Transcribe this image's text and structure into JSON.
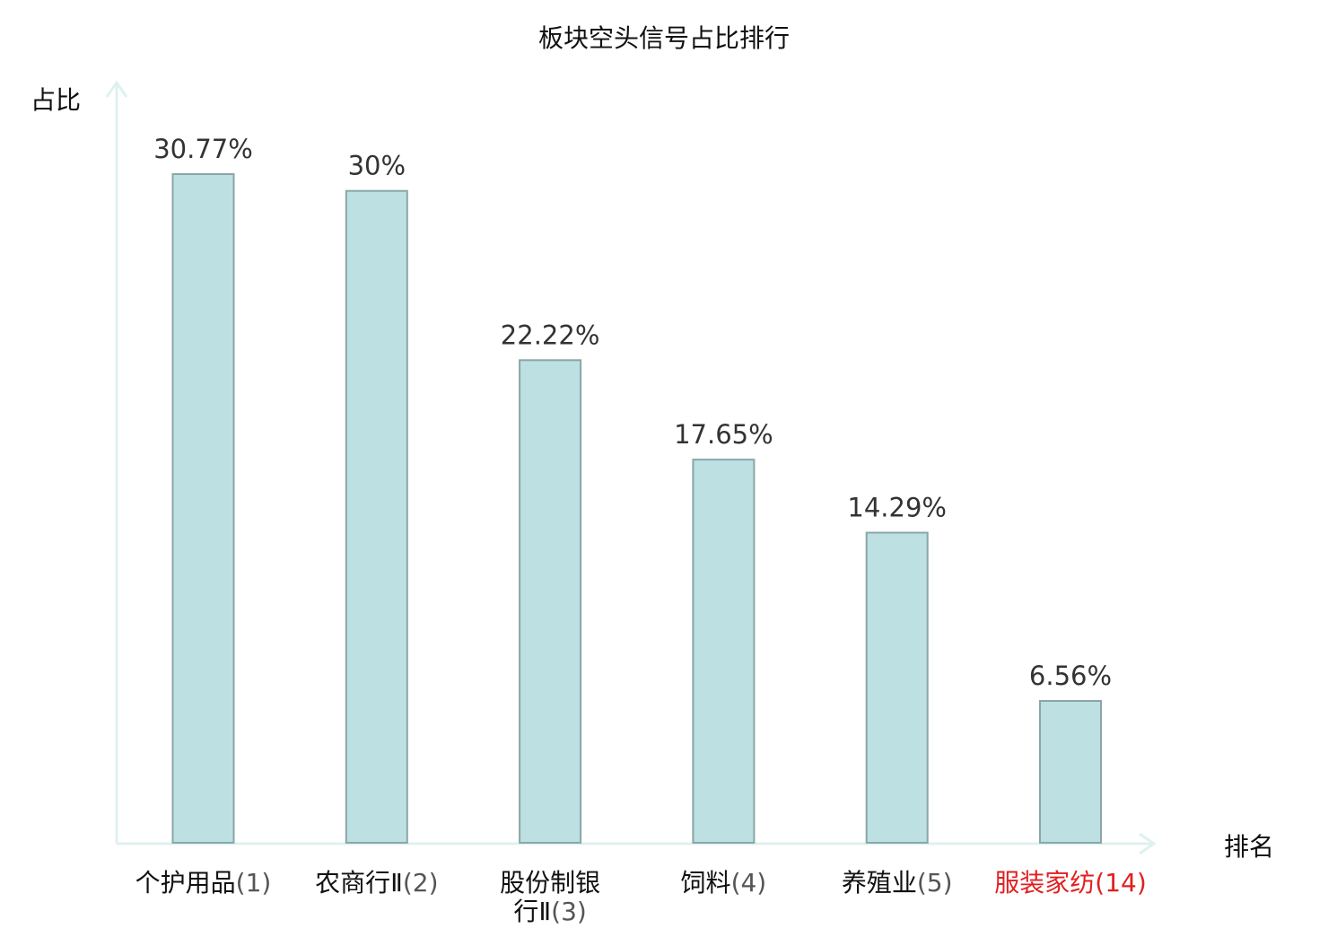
{
  "chart_data": {
    "type": "bar",
    "title": "板块空头信号占比排行",
    "ylabel": "占比",
    "xlabel": "排名",
    "ylim": [
      0,
      35
    ],
    "grid": false,
    "categories": [
      {
        "name": "个护用品",
        "rank": "(1)",
        "highlight": false
      },
      {
        "name": "农商行Ⅱ",
        "rank": "(2)",
        "highlight": false
      },
      {
        "name": "股份制银行Ⅱ",
        "rank": "(3)",
        "highlight": false
      },
      {
        "name": "饲料",
        "rank": "(4)",
        "highlight": false
      },
      {
        "name": "养殖业",
        "rank": "(5)",
        "highlight": false
      },
      {
        "name": "服装家纺",
        "rank": "(14)",
        "highlight": true
      }
    ],
    "values": [
      30.77,
      30,
      22.22,
      17.65,
      14.29,
      6.56
    ],
    "value_labels": [
      "30.77%",
      "30%",
      "22.22%",
      "17.65%",
      "14.29%",
      "6.56%"
    ]
  },
  "colors": {
    "bar_fill": "#bde0e2",
    "bar_stroke": "#8aa6a8",
    "axis": "#dff1ef",
    "text": "#333333",
    "label_text": "#111111",
    "rank_text": "#555555",
    "highlight": "#e02020"
  }
}
